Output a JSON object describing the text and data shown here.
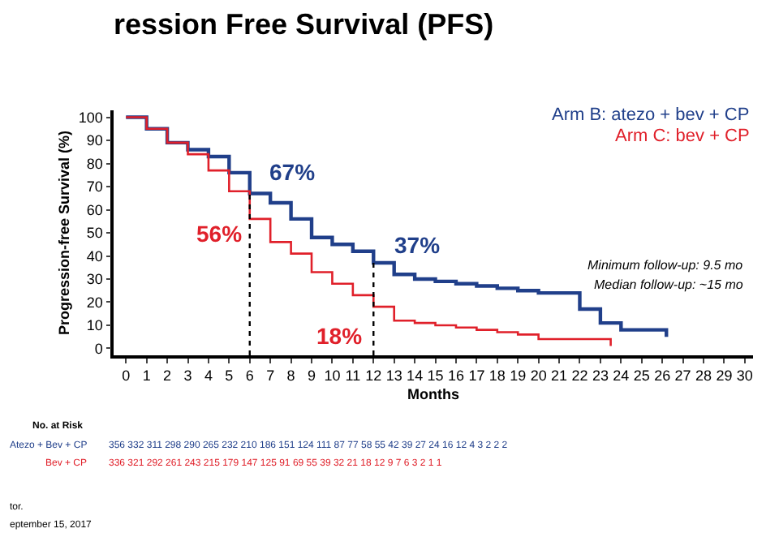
{
  "chart_data": {
    "type": "step",
    "title": "ression Free Survival (PFS)",
    "xlabel": "Months",
    "ylabel": "Progression-free Survival (%)",
    "xlim": [
      -0.6,
      30.4
    ],
    "xticks": [
      0,
      1,
      2,
      3,
      4,
      5,
      6,
      7,
      8,
      9,
      10,
      11,
      12,
      13,
      14,
      15,
      16,
      17,
      18,
      19,
      20,
      21,
      22,
      23,
      24,
      25,
      26,
      27,
      28,
      29,
      30
    ],
    "ylim": [
      -3,
      103
    ],
    "yticks": [
      0,
      10,
      20,
      30,
      40,
      50,
      60,
      70,
      80,
      90,
      100
    ],
    "legend": "top right",
    "marker": "none",
    "line_style": "solid",
    "series": [
      {
        "name": "Arm B: atezo + bev + CP",
        "color": "#203f8a",
        "x": [
          0,
          1,
          2,
          3,
          4,
          5,
          6,
          7,
          8,
          9,
          10,
          11,
          12,
          13,
          14,
          15,
          16,
          17,
          18,
          19,
          20,
          21,
          22,
          23,
          24,
          25,
          26.2,
          26.2
        ],
        "values": [
          100,
          95,
          89,
          86,
          83,
          76,
          67,
          63,
          56,
          48,
          45,
          42,
          37,
          32,
          30,
          29,
          28,
          27,
          26,
          25,
          24,
          24,
          17,
          11,
          8,
          8,
          8,
          5
        ]
      },
      {
        "name": "Arm C: bev + CP",
        "color": "#e0202a",
        "x": [
          0,
          1,
          2,
          3,
          4,
          5,
          6,
          7,
          8,
          9,
          10,
          11,
          12,
          13,
          14,
          15,
          16,
          17,
          18,
          19,
          20,
          21,
          22,
          23.5,
          23.5
        ],
        "values": [
          100,
          95,
          89,
          84,
          77,
          68,
          56,
          46,
          41,
          33,
          28,
          23,
          18,
          12,
          11,
          10,
          9,
          8,
          7,
          6,
          4,
          4,
          4,
          4,
          1
        ]
      }
    ],
    "ref_lines": [
      {
        "axis": "x",
        "value": 6,
        "label": null,
        "color": "#000000",
        "line_style": "dotted"
      },
      {
        "axis": "x",
        "value": 12,
        "label": null,
        "color": "#000000",
        "line_style": "dotted"
      }
    ],
    "annotations": [
      "67%",
      "56%",
      "37%",
      "18%",
      "Minimum follow-up: 9.5 mo",
      "Median follow-up: ~15 mo",
      "No. at Risk",
      "Atezo + Bev + CP",
      "356 332 311 298 290 265 232 210 186 151 124 111 87 77 58 55 42 39 27 24 16 12 4 3 2 2 2",
      "Bev + CP",
      "336 321 292 261 243 215 179 147 125 91 69 55 39 32 21 18 12 9 7 6 3 2 1 1",
      "tor.",
      "eptember 15, 2017"
    ]
  }
}
